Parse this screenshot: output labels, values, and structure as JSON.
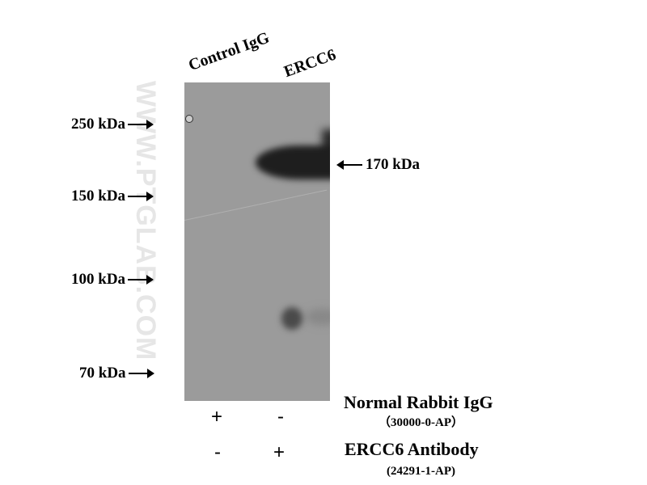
{
  "watermark": "WWW.PTGLAB.COM",
  "lanes": [
    {
      "label": "Control IgG"
    },
    {
      "label": "ERCC6"
    }
  ],
  "markers": [
    {
      "label": "250 kDa"
    },
    {
      "label": "150 kDa"
    },
    {
      "label": "100 kDa"
    },
    {
      "label": "70 kDa"
    }
  ],
  "band_annotation": "170 kDa",
  "conditions": [
    {
      "name": "Normal Rabbit IgG",
      "catalog": "（30000-0-AP）",
      "lane_signs": [
        "+",
        "-"
      ]
    },
    {
      "name": "ERCC6 Antibody",
      "catalog": "(24291-1-AP)",
      "lane_signs": [
        "-",
        "+"
      ]
    }
  ],
  "colors": {
    "membrane": "#9b9b9b",
    "band": "#1e1e1e"
  }
}
